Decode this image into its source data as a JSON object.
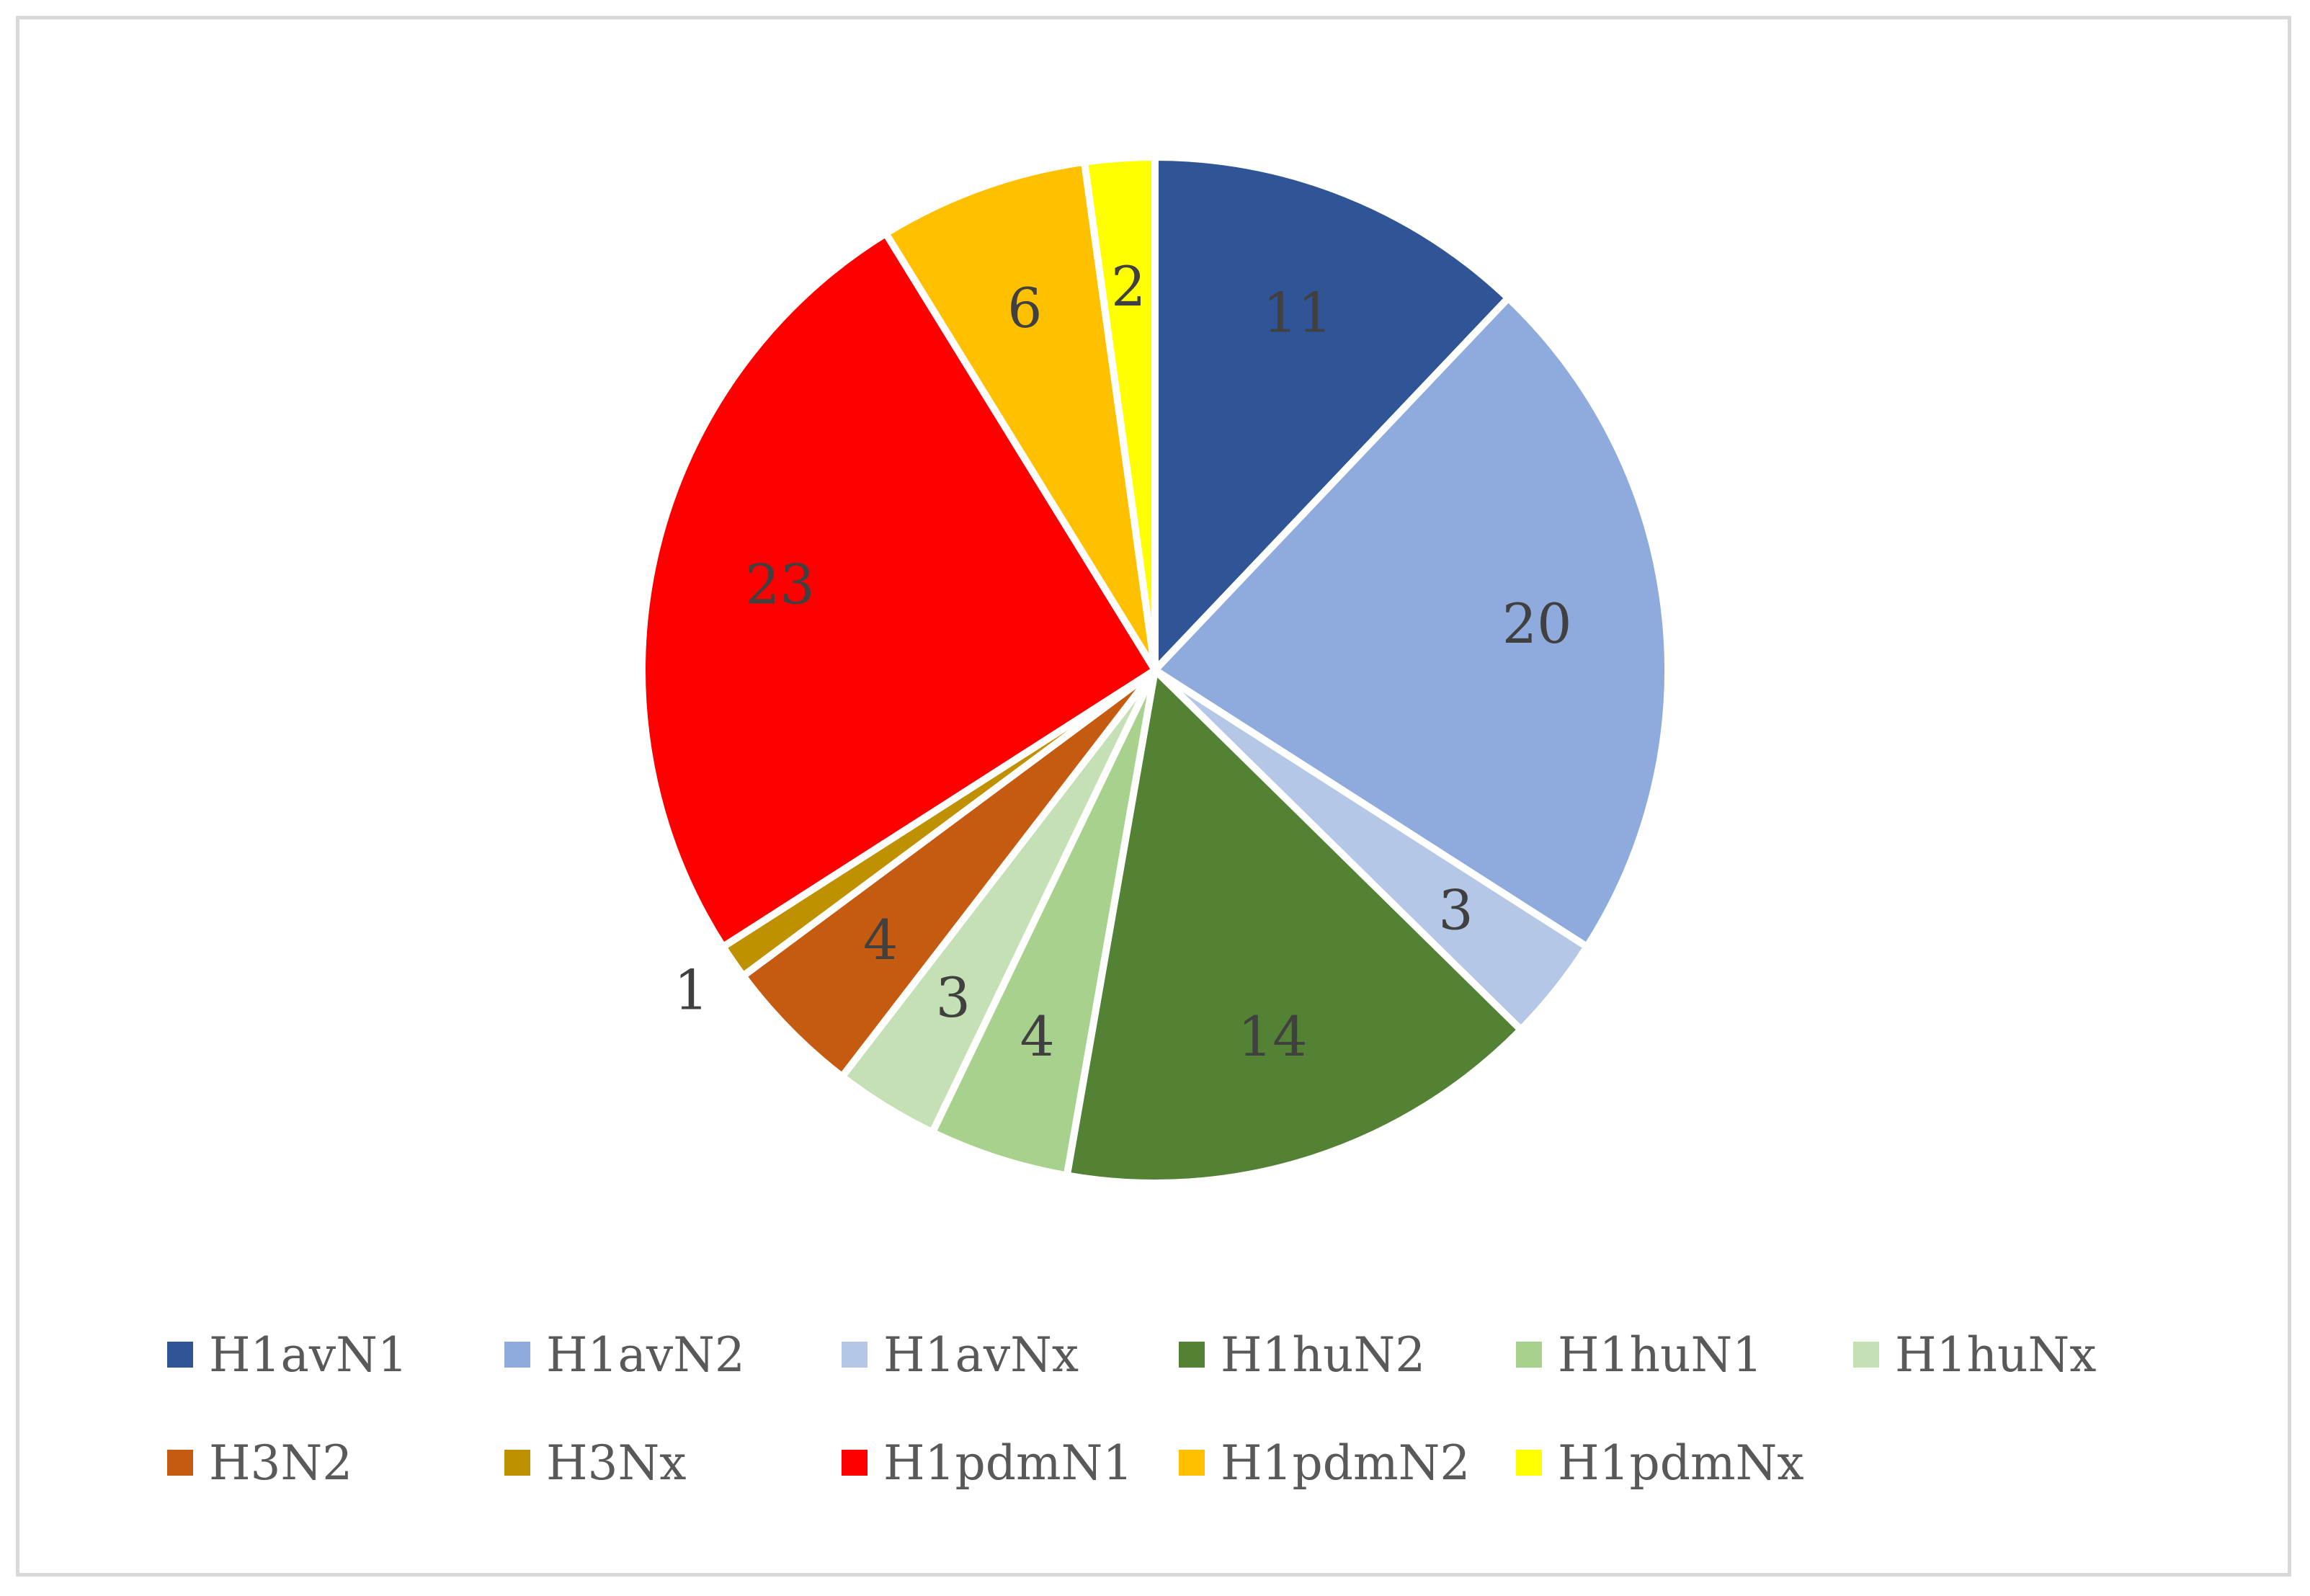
{
  "chart_data": {
    "type": "pie",
    "title": "",
    "slices": [
      {
        "name": "H1avN1",
        "value": 11,
        "color": "#2f5597"
      },
      {
        "name": "H1avN2",
        "value": 20,
        "color": "#8faadc"
      },
      {
        "name": "H1avNx",
        "value": 3,
        "color": "#b4c7e7"
      },
      {
        "name": "H1huN2",
        "value": 14,
        "color": "#548235"
      },
      {
        "name": "H1huN1",
        "value": 4,
        "color": "#a9d18e"
      },
      {
        "name": "H1huNx",
        "value": 3,
        "color": "#c5e0b4"
      },
      {
        "name": "H3N2",
        "value": 4,
        "color": "#c55a11"
      },
      {
        "name": "H3Nx",
        "value": 1,
        "color": "#bf9000"
      },
      {
        "name": "H1pdmN1",
        "value": 23,
        "color": "#ff0000"
      },
      {
        "name": "H1pdmN2",
        "value": 6,
        "color": "#ffc000"
      },
      {
        "name": "H1pdmNx",
        "value": 2,
        "color": "#ffff00"
      }
    ],
    "legend_position": "bottom"
  }
}
